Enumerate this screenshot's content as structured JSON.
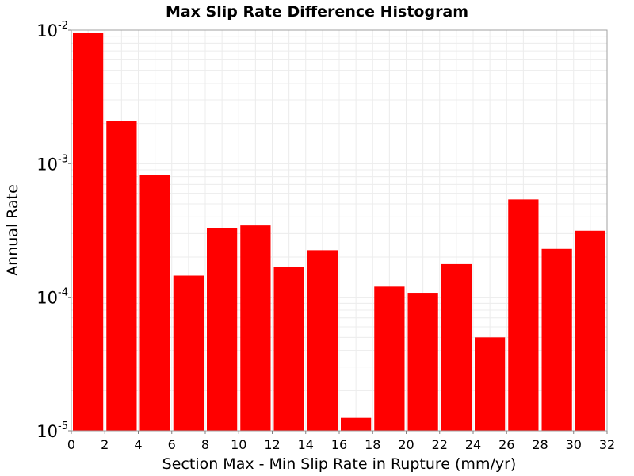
{
  "chart_data": {
    "type": "bar",
    "title": "Max Slip Rate Difference Histogram",
    "xlabel": "Section Max - Min Slip Rate in Rupture (mm/yr)",
    "ylabel": "Annual Rate",
    "xlim": [
      0,
      32
    ],
    "ylim": [
      1e-05,
      0.01
    ],
    "yscale": "log",
    "bin_width": 2,
    "bar_color": "#ff0000",
    "grid": true,
    "legend": "none",
    "x_ticks": [
      "0",
      "2",
      "4",
      "6",
      "8",
      "10",
      "12",
      "14",
      "16",
      "18",
      "20",
      "22",
      "24",
      "26",
      "28",
      "30",
      "32"
    ],
    "y_ticks": [
      {
        "base": "10",
        "exp": "-2"
      },
      {
        "base": "10",
        "exp": "-3"
      },
      {
        "base": "10",
        "exp": "-4"
      },
      {
        "base": "10",
        "exp": "-5"
      }
    ],
    "bins": [
      {
        "x_start": 0,
        "x_end": 2,
        "value": 0.0095
      },
      {
        "x_start": 2,
        "x_end": 4,
        "value": 0.0021
      },
      {
        "x_start": 4,
        "x_end": 6,
        "value": 0.00082
      },
      {
        "x_start": 6,
        "x_end": 8,
        "value": 0.000145
      },
      {
        "x_start": 8,
        "x_end": 10,
        "value": 0.00033
      },
      {
        "x_start": 10,
        "x_end": 12,
        "value": 0.000345
      },
      {
        "x_start": 12,
        "x_end": 14,
        "value": 0.000168
      },
      {
        "x_start": 14,
        "x_end": 16,
        "value": 0.000225
      },
      {
        "x_start": 16,
        "x_end": 18,
        "value": 1.25e-05
      },
      {
        "x_start": 18,
        "x_end": 20,
        "value": 0.00012
      },
      {
        "x_start": 20,
        "x_end": 22,
        "value": 0.000108
      },
      {
        "x_start": 22,
        "x_end": 24,
        "value": 0.000177
      },
      {
        "x_start": 24,
        "x_end": 26,
        "value": 5e-05
      },
      {
        "x_start": 26,
        "x_end": 28,
        "value": 0.00054
      },
      {
        "x_start": 28,
        "x_end": 30,
        "value": 0.00023
      },
      {
        "x_start": 30,
        "x_end": 32,
        "value": 0.000315
      }
    ]
  }
}
